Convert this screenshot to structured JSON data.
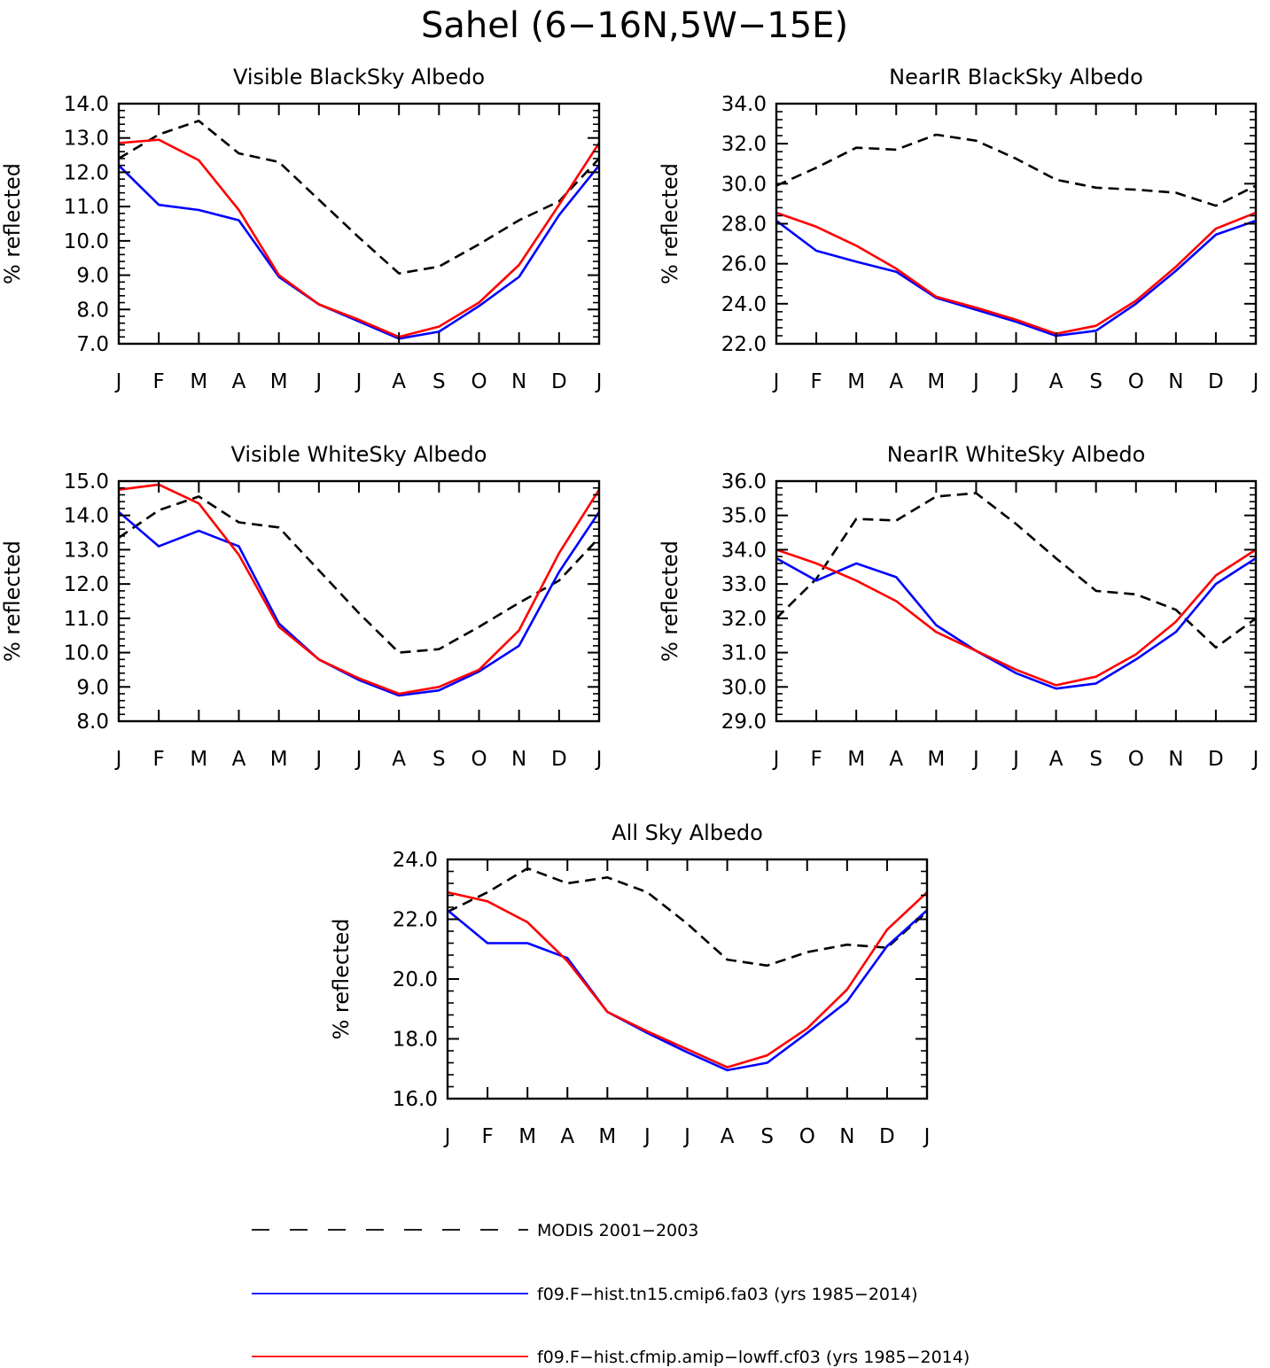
{
  "figure": {
    "title": "Sahel (6−16N,5W−15E)"
  },
  "legend": [
    {
      "label": "MODIS 2001−2003",
      "color": "#000000",
      "style": "dashed"
    },
    {
      "label": "f09.F−hist.tn15.cmip6.fa03 (yrs 1985−2014)",
      "color": "#0000ff",
      "style": "solid"
    },
    {
      "label": "f09.F−hist.cfmip.amip−lowff.cf03 (yrs 1985−2014)",
      "color": "#ff0000",
      "style": "solid"
    }
  ],
  "chart_data": [
    {
      "type": "line",
      "title": "Visible BlackSky Albedo",
      "ylabel": "% reflected",
      "categories": [
        "J",
        "F",
        "M",
        "A",
        "M",
        "J",
        "J",
        "A",
        "S",
        "O",
        "N",
        "D",
        "J"
      ],
      "ylim": [
        7.0,
        14.0
      ],
      "yticks": [
        "7.0",
        "8.0",
        "9.0",
        "10.0",
        "11.0",
        "12.0",
        "13.0",
        "14.0"
      ],
      "series": [
        {
          "name": "MODIS 2001−2003",
          "color": "#000000",
          "dash": true,
          "values": [
            12.4,
            13.1,
            13.5,
            12.55,
            12.3,
            11.2,
            10.1,
            9.05,
            9.25,
            9.9,
            10.6,
            11.15,
            12.4
          ]
        },
        {
          "name": "f09.F−hist.tn15.cmip6.fa03 (yrs 1985−2014)",
          "color": "#0000ff",
          "dash": false,
          "values": [
            12.2,
            11.05,
            10.9,
            10.6,
            8.95,
            8.15,
            7.65,
            7.15,
            7.35,
            8.1,
            8.95,
            10.75,
            12.2
          ]
        },
        {
          "name": "f09.F−hist.cfmip.amip−lowff.cf03 (yrs 1985−2014)",
          "color": "#ff0000",
          "dash": false,
          "values": [
            12.85,
            12.95,
            12.35,
            10.9,
            9.0,
            8.15,
            7.7,
            7.2,
            7.5,
            8.2,
            9.3,
            11.05,
            12.85
          ]
        }
      ]
    },
    {
      "type": "line",
      "title": "NearIR BlackSky Albedo",
      "ylabel": "% reflected",
      "categories": [
        "J",
        "F",
        "M",
        "A",
        "M",
        "J",
        "J",
        "A",
        "S",
        "O",
        "N",
        "D",
        "J"
      ],
      "ylim": [
        22.0,
        34.0
      ],
      "yticks": [
        "22.0",
        "24.0",
        "26.0",
        "28.0",
        "30.0",
        "32.0",
        "34.0"
      ],
      "series": [
        {
          "name": "MODIS 2001−2003",
          "color": "#000000",
          "dash": true,
          "values": [
            29.9,
            30.8,
            31.8,
            31.7,
            32.45,
            32.15,
            31.25,
            30.2,
            29.8,
            29.7,
            29.55,
            28.9,
            29.9
          ]
        },
        {
          "name": "f09.F−hist.tn15.cmip6.fa03 (yrs 1985−2014)",
          "color": "#0000ff",
          "dash": false,
          "values": [
            28.15,
            26.65,
            26.1,
            25.6,
            24.3,
            23.7,
            23.1,
            22.4,
            22.65,
            24.0,
            25.65,
            27.45,
            28.15
          ]
        },
        {
          "name": "f09.F−hist.cfmip.amip−lowff.cf03 (yrs 1985−2014)",
          "color": "#ff0000",
          "dash": false,
          "values": [
            28.55,
            27.85,
            26.9,
            25.75,
            24.35,
            23.8,
            23.2,
            22.5,
            22.9,
            24.15,
            25.85,
            27.75,
            28.55
          ]
        }
      ]
    },
    {
      "type": "line",
      "title": "Visible WhiteSky Albedo",
      "ylabel": "% reflected",
      "categories": [
        "J",
        "F",
        "M",
        "A",
        "M",
        "J",
        "J",
        "A",
        "S",
        "O",
        "N",
        "D",
        "J"
      ],
      "ylim": [
        8.0,
        15.0
      ],
      "yticks": [
        "8.0",
        "9.0",
        "10.0",
        "11.0",
        "12.0",
        "13.0",
        "14.0",
        "15.0"
      ],
      "series": [
        {
          "name": "MODIS 2001−2003",
          "color": "#000000",
          "dash": true,
          "values": [
            13.35,
            14.15,
            14.55,
            13.8,
            13.65,
            12.4,
            11.15,
            10.0,
            10.1,
            10.75,
            11.45,
            12.1,
            13.35
          ]
        },
        {
          "name": "f09.F−hist.tn15.cmip6.fa03 (yrs 1985−2014)",
          "color": "#0000ff",
          "dash": false,
          "values": [
            14.1,
            13.1,
            13.55,
            13.1,
            10.85,
            9.8,
            9.2,
            8.75,
            8.9,
            9.45,
            10.2,
            12.35,
            14.1
          ]
        },
        {
          "name": "f09.F−hist.cfmip.amip−lowff.cf03 (yrs 1985−2014)",
          "color": "#ff0000",
          "dash": false,
          "values": [
            14.75,
            14.9,
            14.35,
            12.85,
            10.75,
            9.8,
            9.25,
            8.8,
            9.0,
            9.5,
            10.65,
            12.9,
            14.75
          ]
        }
      ]
    },
    {
      "type": "line",
      "title": "NearIR WhiteSky Albedo",
      "ylabel": "% reflected",
      "categories": [
        "J",
        "F",
        "M",
        "A",
        "M",
        "J",
        "J",
        "A",
        "S",
        "O",
        "N",
        "D",
        "J"
      ],
      "ylim": [
        29.0,
        36.0
      ],
      "yticks": [
        "29.0",
        "30.0",
        "31.0",
        "32.0",
        "33.0",
        "34.0",
        "35.0",
        "36.0"
      ],
      "series": [
        {
          "name": "MODIS 2001−2003",
          "color": "#000000",
          "dash": true,
          "values": [
            32.0,
            33.15,
            34.9,
            34.85,
            35.55,
            35.65,
            34.75,
            33.75,
            32.8,
            32.7,
            32.25,
            31.15,
            32.0
          ]
        },
        {
          "name": "f09.F−hist.tn15.cmip6.fa03 (yrs 1985−2014)",
          "color": "#0000ff",
          "dash": false,
          "values": [
            33.75,
            33.1,
            33.6,
            33.2,
            31.8,
            31.05,
            30.4,
            29.95,
            30.1,
            30.8,
            31.6,
            33.0,
            33.75
          ]
        },
        {
          "name": "f09.F−hist.cfmip.amip−lowff.cf03 (yrs 1985−2014)",
          "color": "#ff0000",
          "dash": false,
          "values": [
            34.0,
            33.6,
            33.1,
            32.5,
            31.6,
            31.05,
            30.5,
            30.05,
            30.3,
            30.95,
            31.9,
            33.25,
            34.0
          ]
        }
      ]
    },
    {
      "type": "line",
      "title": "All Sky Albedo",
      "ylabel": "% reflected",
      "categories": [
        "J",
        "F",
        "M",
        "A",
        "M",
        "J",
        "J",
        "A",
        "S",
        "O",
        "N",
        "D",
        "J"
      ],
      "ylim": [
        16.0,
        24.0
      ],
      "yticks": [
        "16.0",
        "18.0",
        "20.0",
        "22.0",
        "24.0"
      ],
      "series": [
        {
          "name": "MODIS 2001−2003",
          "color": "#000000",
          "dash": true,
          "values": [
            22.25,
            22.9,
            23.7,
            23.2,
            23.4,
            22.9,
            21.85,
            20.65,
            20.45,
            20.9,
            21.15,
            21.05,
            22.25
          ]
        },
        {
          "name": "f09.F−hist.tn15.cmip6.fa03 (yrs 1985−2014)",
          "color": "#0000ff",
          "dash": false,
          "values": [
            22.3,
            21.2,
            21.2,
            20.7,
            18.9,
            18.2,
            17.55,
            16.95,
            17.2,
            18.2,
            19.25,
            21.1,
            22.3
          ]
        },
        {
          "name": "f09.F−hist.cfmip.amip−lowff.cf03 (yrs 1985−2014)",
          "color": "#ff0000",
          "dash": false,
          "values": [
            22.9,
            22.6,
            21.9,
            20.6,
            18.9,
            18.25,
            17.65,
            17.05,
            17.45,
            18.35,
            19.65,
            21.65,
            22.9
          ]
        }
      ]
    }
  ]
}
